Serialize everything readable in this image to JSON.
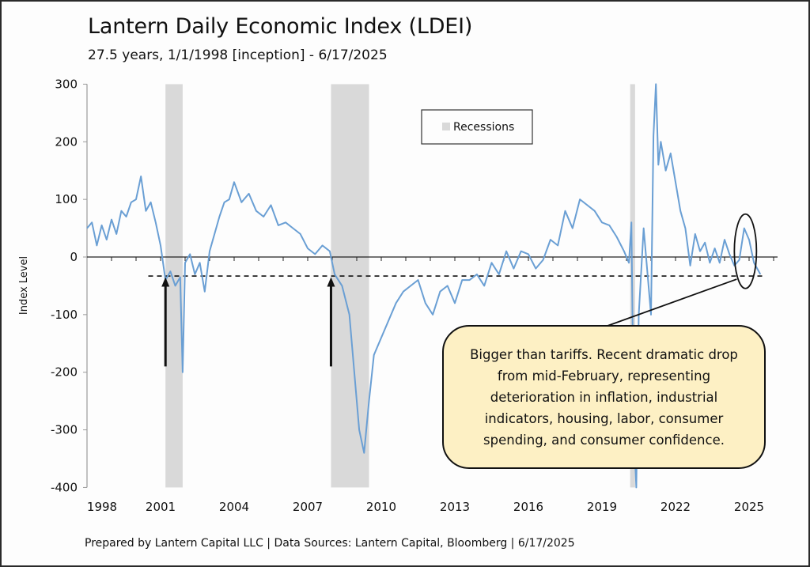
{
  "header": {
    "title": "Lantern Daily Economic Index (LDEI)",
    "subtitle": "27.5 years, 1/1/1998 [inception] - 6/17/2025"
  },
  "footer": {
    "text": "Prepared by Lantern Capital LLC | Data Sources: Lantern Capital, Bloomberg | 6/17/2025"
  },
  "annotation": {
    "callout_text": "Bigger than tariffs. Recent dramatic drop from mid-February, representing deterioration in inflation, industrial indicators, housing, labor, consumer spending, and consumer confidence."
  },
  "colors": {
    "series": "#6a9fd4",
    "recession": "#d9d9d9",
    "callout_bg": "#fdf0c4",
    "axis": "#222222"
  },
  "chart_data": {
    "type": "line",
    "title": "Lantern Daily Economic Index (LDEI)",
    "subtitle": "27.5 years, 1/1/1998 [inception] - 6/17/2025",
    "xlabel": "",
    "ylabel": "Index Level",
    "xlim": [
      1998,
      2026
    ],
    "ylim": [
      -400,
      300
    ],
    "x_ticks": [
      "1998",
      "2001",
      "2004",
      "2007",
      "2010",
      "2013",
      "2016",
      "2019",
      "2022",
      "2025"
    ],
    "y_ticks": [
      "300",
      "200",
      "100",
      "0",
      "-100",
      "-200",
      "-300",
      "-400"
    ],
    "y_tick_values": [
      300,
      200,
      100,
      0,
      -100,
      -200,
      -300,
      -400
    ],
    "x_tick_values": [
      1998,
      2001,
      2004,
      2007,
      2010,
      2013,
      2016,
      2019,
      2022,
      2025
    ],
    "grid": false,
    "legend": {
      "position": "top-center",
      "entries": [
        "Recessions"
      ]
    },
    "recessions": [
      {
        "start": 2001.2,
        "end": 2001.9
      },
      {
        "start": 2007.95,
        "end": 2009.5
      },
      {
        "start": 2020.15,
        "end": 2020.35
      }
    ],
    "reference_line": {
      "value": -33,
      "style": "dashed",
      "from": 2000.5,
      "to": 2025.6
    },
    "arrows": [
      {
        "x": 2001.2,
        "from_value": -190,
        "to_value": -35
      },
      {
        "x": 2007.95,
        "from_value": -190,
        "to_value": -35
      }
    ],
    "highlight_ellipse": {
      "x": 2024.85,
      "value": 10
    },
    "series": [
      {
        "name": "LDEI",
        "x": [
          1998.0,
          1998.2,
          1998.4,
          1998.6,
          1998.8,
          1999.0,
          1999.2,
          1999.4,
          1999.6,
          1999.8,
          2000.0,
          2000.2,
          2000.4,
          2000.6,
          2000.8,
          2001.0,
          2001.2,
          2001.4,
          2001.6,
          2001.8,
          2001.9,
          2002.0,
          2002.2,
          2002.4,
          2002.6,
          2002.8,
          2003.0,
          2003.2,
          2003.4,
          2003.6,
          2003.8,
          2004.0,
          2004.3,
          2004.6,
          2004.9,
          2005.2,
          2005.5,
          2005.8,
          2006.1,
          2006.4,
          2006.7,
          2007.0,
          2007.3,
          2007.6,
          2007.9,
          2008.1,
          2008.4,
          2008.7,
          2008.9,
          2009.1,
          2009.3,
          2009.5,
          2009.7,
          2010.0,
          2010.3,
          2010.6,
          2010.9,
          2011.2,
          2011.5,
          2011.8,
          2012.1,
          2012.4,
          2012.7,
          2013.0,
          2013.3,
          2013.6,
          2013.9,
          2014.2,
          2014.5,
          2014.8,
          2015.1,
          2015.4,
          2015.7,
          2016.0,
          2016.3,
          2016.6,
          2016.9,
          2017.2,
          2017.5,
          2017.8,
          2018.1,
          2018.4,
          2018.7,
          2019.0,
          2019.3,
          2019.6,
          2019.9,
          2020.1,
          2020.2,
          2020.3,
          2020.4,
          2020.5,
          2020.7,
          2020.9,
          2021.0,
          2021.1,
          2021.2,
          2021.3,
          2021.4,
          2021.6,
          2021.8,
          2022.0,
          2022.2,
          2022.4,
          2022.6,
          2022.8,
          2023.0,
          2023.2,
          2023.4,
          2023.6,
          2023.8,
          2024.0,
          2024.2,
          2024.4,
          2024.6,
          2024.8,
          2025.0,
          2025.2,
          2025.46
        ],
        "values": [
          50,
          60,
          20,
          55,
          30,
          65,
          40,
          80,
          70,
          95,
          100,
          140,
          80,
          95,
          60,
          20,
          -40,
          -25,
          -50,
          -35,
          -200,
          -10,
          5,
          -30,
          -10,
          -60,
          10,
          40,
          70,
          95,
          100,
          130,
          95,
          110,
          80,
          70,
          90,
          55,
          60,
          50,
          40,
          15,
          5,
          20,
          10,
          -30,
          -50,
          -100,
          -200,
          -300,
          -340,
          -250,
          -170,
          -140,
          -110,
          -80,
          -60,
          -50,
          -40,
          -80,
          -100,
          -60,
          -50,
          -80,
          -40,
          -40,
          -30,
          -50,
          -10,
          -30,
          10,
          -20,
          10,
          5,
          -20,
          -5,
          30,
          20,
          80,
          50,
          100,
          90,
          80,
          60,
          55,
          35,
          10,
          -10,
          60,
          -300,
          -400,
          -100,
          50,
          -50,
          -100,
          210,
          300,
          160,
          200,
          150,
          180,
          130,
          80,
          50,
          -15,
          40,
          10,
          25,
          -10,
          15,
          -10,
          30,
          5,
          -15,
          -5,
          50,
          30,
          -10,
          -30
        ]
      }
    ]
  }
}
